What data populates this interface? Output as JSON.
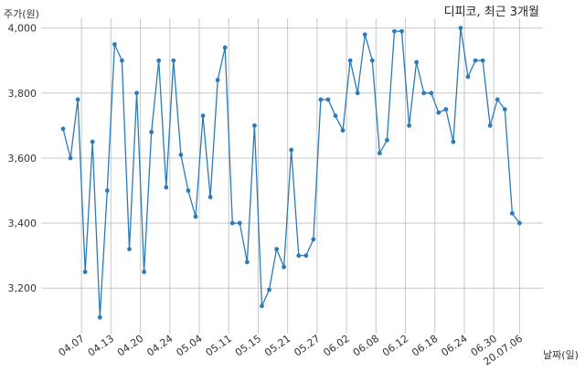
{
  "chart_data": {
    "type": "line",
    "title": "디피코, 최근 3개월",
    "ylabel": "주가(원)",
    "xlabel": "날짜(일)",
    "ylim": [
      3060,
      4030
    ],
    "yticks": [
      {
        "value": 3200,
        "label": "3,200"
      },
      {
        "value": 3400,
        "label": "3,400"
      },
      {
        "value": 3600,
        "label": "3,600"
      },
      {
        "value": 3800,
        "label": "3,800"
      },
      {
        "value": 4000,
        "label": "4,000"
      }
    ],
    "xticks": [
      {
        "index": 2.5,
        "label": "04.07"
      },
      {
        "index": 6.5,
        "label": "04.13"
      },
      {
        "index": 10.5,
        "label": "04.20"
      },
      {
        "index": 14.5,
        "label": "04.24"
      },
      {
        "index": 18.5,
        "label": "05.04"
      },
      {
        "index": 22.5,
        "label": "05.11"
      },
      {
        "index": 26.5,
        "label": "05.15"
      },
      {
        "index": 30.5,
        "label": "05.21"
      },
      {
        "index": 34.5,
        "label": "05.27"
      },
      {
        "index": 38.5,
        "label": "06.02"
      },
      {
        "index": 42.5,
        "label": "06.08"
      },
      {
        "index": 46.5,
        "label": "06.12"
      },
      {
        "index": 50.5,
        "label": "06.18"
      },
      {
        "index": 54.5,
        "label": "06.24"
      },
      {
        "index": 58.5,
        "label": "06.30"
      },
      {
        "index": 62,
        "label": "20.07.06"
      }
    ],
    "grid": true,
    "series": [
      {
        "color": "#2b7bb9",
        "values": [
          3690,
          3600,
          3780,
          3250,
          3650,
          3110,
          3500,
          3950,
          3900,
          3320,
          3800,
          3250,
          3680,
          3900,
          3510,
          3900,
          3610,
          3500,
          3420,
          3730,
          3480,
          3840,
          3940,
          3400,
          3400,
          3280,
          3700,
          3145,
          3195,
          3320,
          3265,
          3625,
          3300,
          3300,
          3350,
          3780,
          3780,
          3730,
          3685,
          3900,
          3800,
          3980,
          3900,
          3615,
          3655,
          3990,
          3990,
          3700,
          3895,
          3800,
          3800,
          3740,
          3750,
          3650,
          4000,
          3850,
          3900,
          3900,
          3700,
          3780,
          3750,
          3430,
          3400
        ]
      }
    ]
  }
}
